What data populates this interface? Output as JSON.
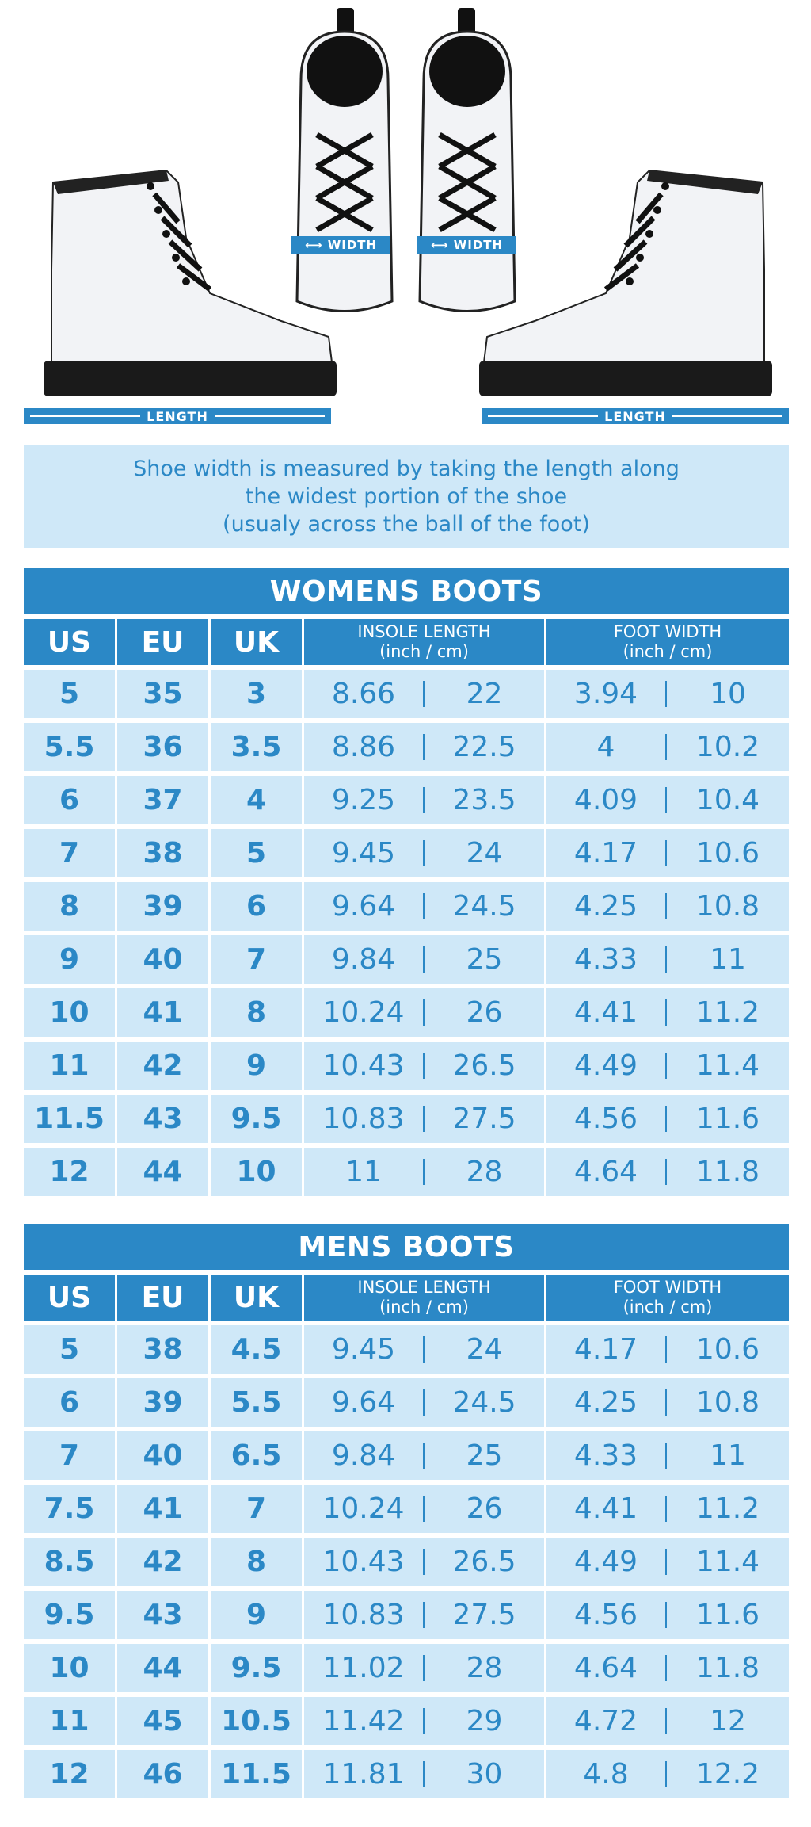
{
  "labels": {
    "length": "LENGTH",
    "width": "WIDTH"
  },
  "note": {
    "line1": "Shoe width is measured by taking the length along",
    "line2": "the widest portion of the shoe",
    "line3": "(usualy across the ball of the foot)"
  },
  "headers": {
    "us": "US",
    "eu": "EU",
    "uk": "UK",
    "insole": "INSOLE LENGTH",
    "foot": "FOOT WIDTH",
    "units": "(inch / cm)"
  },
  "womens": {
    "title": "WOMENS BOOTS",
    "rows": [
      [
        "5",
        "35",
        "3",
        "8.66",
        "22",
        "3.94",
        "10"
      ],
      [
        "5.5",
        "36",
        "3.5",
        "8.86",
        "22.5",
        "4",
        "10.2"
      ],
      [
        "6",
        "37",
        "4",
        "9.25",
        "23.5",
        "4.09",
        "10.4"
      ],
      [
        "7",
        "38",
        "5",
        "9.45",
        "24",
        "4.17",
        "10.6"
      ],
      [
        "8",
        "39",
        "6",
        "9.64",
        "24.5",
        "4.25",
        "10.8"
      ],
      [
        "9",
        "40",
        "7",
        "9.84",
        "25",
        "4.33",
        "11"
      ],
      [
        "10",
        "41",
        "8",
        "10.24",
        "26",
        "4.41",
        "11.2"
      ],
      [
        "11",
        "42",
        "9",
        "10.43",
        "26.5",
        "4.49",
        "11.4"
      ],
      [
        "11.5",
        "43",
        "9.5",
        "10.83",
        "27.5",
        "4.56",
        "11.6"
      ],
      [
        "12",
        "44",
        "10",
        "11",
        "28",
        "4.64",
        "11.8"
      ]
    ]
  },
  "mens": {
    "title": "MENS BOOTS",
    "rows": [
      [
        "5",
        "38",
        "4.5",
        "9.45",
        "24",
        "4.17",
        "10.6"
      ],
      [
        "6",
        "39",
        "5.5",
        "9.64",
        "24.5",
        "4.25",
        "10.8"
      ],
      [
        "7",
        "40",
        "6.5",
        "9.84",
        "25",
        "4.33",
        "11"
      ],
      [
        "7.5",
        "41",
        "7",
        "10.24",
        "26",
        "4.41",
        "11.2"
      ],
      [
        "8.5",
        "42",
        "8",
        "10.43",
        "26.5",
        "4.49",
        "11.4"
      ],
      [
        "9.5",
        "43",
        "9",
        "10.83",
        "27.5",
        "4.56",
        "11.6"
      ],
      [
        "10",
        "44",
        "9.5",
        "11.02",
        "28",
        "4.64",
        "11.8"
      ],
      [
        "11",
        "45",
        "10.5",
        "11.42",
        "29",
        "4.72",
        "12"
      ],
      [
        "12",
        "46",
        "11.5",
        "11.81",
        "30",
        "4.8",
        "12.2"
      ]
    ]
  },
  "colors": {
    "accent": "#2b88c6",
    "cell_bg": "#cfe8f8",
    "boot": "#f2f3f6",
    "sole": "#1a1a1a"
  }
}
